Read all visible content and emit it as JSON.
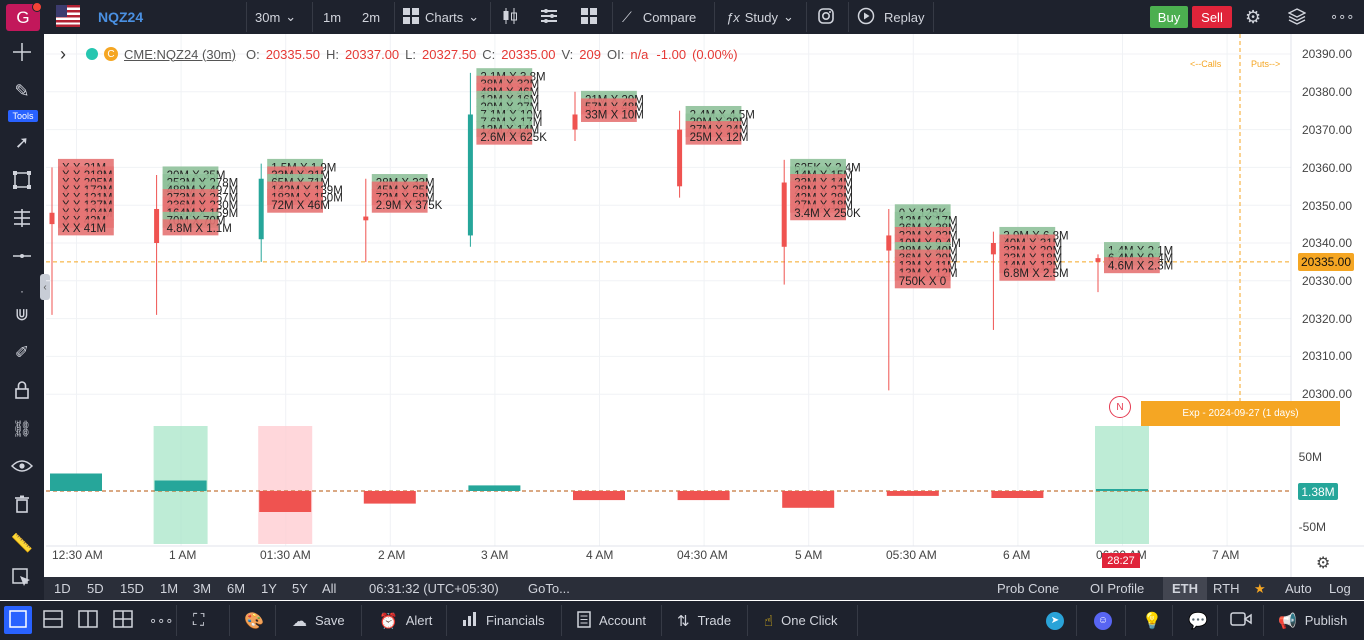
{
  "header": {
    "avatar_letter": "G",
    "symbol": "NQZ24",
    "interval": "30m",
    "quick_intervals": [
      "1m",
      "2m"
    ],
    "charts_label": "Charts",
    "compare_label": "Compare",
    "study_label": "Study",
    "replay_label": "Replay",
    "buy_label": "Buy",
    "sell_label": "Sell"
  },
  "left_toolbar": {
    "tools_label": "Tools"
  },
  "legend": {
    "symbol": "CME:NQZ24 (30m)",
    "o_label": "O:",
    "open": "20335.50",
    "h_label": "H:",
    "high": "20337.00",
    "l_label": "L:",
    "low": "20327.50",
    "c_label": "C:",
    "close": "20335.00",
    "v_label": "V:",
    "volume": "209",
    "oi_label": "OI:",
    "oi": "n/a",
    "change": "-1.00",
    "change_pct": "(0.00%)"
  },
  "annotations": {
    "calls": "<--Calls",
    "puts": "Puts-->",
    "expiry": "Exp - 2024-09-27 (1 days)",
    "n_marker": "N",
    "countdown": "28:27"
  },
  "price_axis": {
    "labels": [
      "20390.00",
      "20380.00",
      "20370.00",
      "20360.00",
      "20350.00",
      "20340.00",
      "20330.00",
      "20320.00",
      "20310.00",
      "20300.00"
    ],
    "current": "20335.00"
  },
  "oi_axis": {
    "labels": [
      "50M",
      "-50M"
    ],
    "current": "1.38M"
  },
  "time_axis": [
    "12:30 AM",
    "1 AM",
    "01:30 AM",
    "2 AM",
    "3 AM",
    "4 AM",
    "04:30 AM",
    "5 AM",
    "05:30 AM",
    "6 AM",
    "06:30 AM",
    "7 AM"
  ],
  "colors": {
    "up": "#26a69a",
    "down": "#ef5350",
    "ask_cell": "#8fc19a",
    "bid_cell": "#e57373",
    "accent": "#2962ff",
    "buy": "#4caf50",
    "sell": "#e0243a",
    "expiry_bg": "#f5a623"
  },
  "chart_data": {
    "type": "footprint",
    "price_range": [
      20297,
      20393
    ],
    "candles": [
      {
        "time": "12:30 AM",
        "open": 20348,
        "high": 20360,
        "low": 20321,
        "close": 20345,
        "rows": [
          [
            "20360",
            "",
            "X 21M"
          ],
          [
            "20358",
            "",
            "X 218M"
          ],
          [
            "20356",
            "",
            "X 205M"
          ],
          [
            "20354",
            "",
            "X 172M"
          ],
          [
            "20352",
            "",
            "X 121M"
          ],
          [
            "20350",
            "",
            "X 137M"
          ],
          [
            "20348",
            "",
            "X 104M"
          ],
          [
            "20346",
            "",
            "X 42M"
          ],
          [
            "20344",
            "",
            "X 41M"
          ]
        ]
      },
      {
        "time": "1 AM",
        "open": 20349,
        "high": 20358,
        "low": 20321,
        "close": 20340,
        "rows": [
          [
            "20358",
            "20M",
            "35M"
          ],
          [
            "20356",
            "253M",
            "278M"
          ],
          [
            "20354",
            "488M",
            "497M"
          ],
          [
            "20352",
            "273M",
            "267M"
          ],
          [
            "20350",
            "236M",
            "230M"
          ],
          [
            "20348",
            "164M",
            "159M"
          ],
          [
            "20346",
            "70M",
            "70M"
          ],
          [
            "20344",
            "4.8M",
            "1.1M"
          ]
        ]
      },
      {
        "time": "01:30 AM",
        "open": 20341,
        "high": 20361,
        "low": 20335,
        "close": 20357,
        "rows": [
          [
            "20360",
            "1.5M",
            "1.9M"
          ],
          [
            "20358",
            "33M",
            "31M"
          ],
          [
            "20356",
            "65M",
            "71M"
          ],
          [
            "20354",
            "142M",
            "139M"
          ],
          [
            "20352",
            "183M",
            "150M"
          ],
          [
            "20350",
            "72M",
            "46M"
          ]
        ]
      },
      {
        "time": "2 AM",
        "open": 20347,
        "high": 20357,
        "low": 20335,
        "close": 20346,
        "rows": [
          [
            "20356",
            "28M",
            "33M"
          ],
          [
            "20354",
            "45M",
            "25M"
          ],
          [
            "20352",
            "72M",
            "58M"
          ],
          [
            "20350",
            "2.9M",
            "375K"
          ]
        ]
      },
      {
        "time": "3 AM",
        "open": 20342,
        "high": 20385,
        "low": 20339,
        "close": 20374,
        "rows": [
          [
            "20384",
            "2.1M",
            "3.8M"
          ],
          [
            "20382",
            "38M",
            "32M"
          ],
          [
            "20380",
            "48M",
            "46M"
          ],
          [
            "20378",
            "12M",
            "16M"
          ],
          [
            "20376",
            "20M",
            "27M"
          ],
          [
            "20374",
            "7.1M",
            "10M"
          ],
          [
            "20372",
            "7.6M",
            "17M"
          ],
          [
            "20370",
            "12M",
            "14M"
          ],
          [
            "20368",
            "2.6M",
            "625K"
          ]
        ]
      },
      {
        "time": "4 AM",
        "open": 20374,
        "high": 20380,
        "low": 20367,
        "close": 20370,
        "rows": [
          [
            "20378",
            "21M",
            "29M"
          ],
          [
            "20376",
            "57M",
            "48M"
          ],
          [
            "20374",
            "33M",
            "10M"
          ]
        ]
      },
      {
        "time": "04:30 AM",
        "open": 20370,
        "high": 20375,
        "low": 20352,
        "close": 20355,
        "rows": [
          [
            "20374",
            "2.4M",
            "4.5M"
          ],
          [
            "20372",
            "29M",
            "29M"
          ],
          [
            "20370",
            "37M",
            "24M"
          ],
          [
            "20368",
            "25M",
            "12M"
          ]
        ]
      },
      {
        "time": "5 AM",
        "open": 20356,
        "high": 20362,
        "low": 20329,
        "close": 20339,
        "rows": [
          [
            "20360",
            "625K",
            "2.4M"
          ],
          [
            "20358",
            "14M",
            "15M"
          ],
          [
            "20356",
            "33M",
            "14M"
          ],
          [
            "20354",
            "28M",
            "27M"
          ],
          [
            "20352",
            "42M",
            "28M"
          ],
          [
            "20350",
            "27M",
            "18M"
          ],
          [
            "20348",
            "3.4M",
            "250K"
          ]
        ]
      },
      {
        "time": "05:30 AM",
        "open": 20342,
        "high": 20349,
        "low": 20301,
        "close": 20338,
        "rows": [
          [
            "20348",
            "0",
            "125K"
          ],
          [
            "20346",
            "13M",
            "17M"
          ],
          [
            "20344",
            "36M",
            "38M"
          ],
          [
            "20342",
            "32M",
            "23M"
          ],
          [
            "20340",
            "10M",
            "9.4M"
          ],
          [
            "20338",
            "38M",
            "40M"
          ],
          [
            "20336",
            "36M",
            "29M"
          ],
          [
            "20334",
            "13M",
            "11M"
          ],
          [
            "20332",
            "13M",
            "12M"
          ],
          [
            "20330",
            "750K",
            "0"
          ]
        ]
      },
      {
        "time": "6 AM",
        "open": 20340,
        "high": 20343,
        "low": 20317,
        "close": 20337,
        "rows": [
          [
            "20342",
            "3.9M",
            "6.8M"
          ],
          [
            "20340",
            "40M",
            "31M"
          ],
          [
            "20338",
            "33M",
            "29M"
          ],
          [
            "20336",
            "23M",
            "18M"
          ],
          [
            "20334",
            "14M",
            "13M"
          ],
          [
            "20332",
            "6.8M",
            "2.5M"
          ]
        ]
      },
      {
        "time": "06:30 AM",
        "open": 20336,
        "high": 20337,
        "low": 20327,
        "close": 20335,
        "rows": [
          [
            "20338",
            "1.4M",
            "2.1M"
          ],
          [
            "20336",
            "6.4M",
            "9.4M"
          ],
          [
            "20334",
            "4.6M",
            "2.3M"
          ]
        ]
      }
    ],
    "oi_change": [
      {
        "time": "12:30 AM",
        "value": 25
      },
      {
        "time": "1 AM",
        "value": 15
      },
      {
        "time": "01:30 AM",
        "value": -30
      },
      {
        "time": "2 AM",
        "value": -18
      },
      {
        "time": "3 AM",
        "value": 8
      },
      {
        "time": "4 AM",
        "value": -13
      },
      {
        "time": "04:30 AM",
        "value": -13
      },
      {
        "time": "5 AM",
        "value": -24
      },
      {
        "time": "05:30 AM",
        "value": -7
      },
      {
        "time": "6 AM",
        "value": -10
      },
      {
        "time": "06:30 AM",
        "value": 1.38
      }
    ]
  },
  "bottom_bar": {
    "ranges": [
      "1D",
      "5D",
      "15D",
      "1M",
      "3M",
      "6M",
      "1Y",
      "5Y",
      "All"
    ],
    "clock": "06:31:32 (UTC+05:30)",
    "goto": "GoTo...",
    "prob_cone": "Prob Cone",
    "oi_profile": "OI Profile",
    "eth": "ETH",
    "rth": "RTH",
    "auto": "Auto",
    "log": "Log"
  },
  "footer": {
    "save": "Save",
    "alert": "Alert",
    "financials": "Financials",
    "account": "Account",
    "trade": "Trade",
    "one_click": "One Click",
    "publish": "Publish"
  }
}
